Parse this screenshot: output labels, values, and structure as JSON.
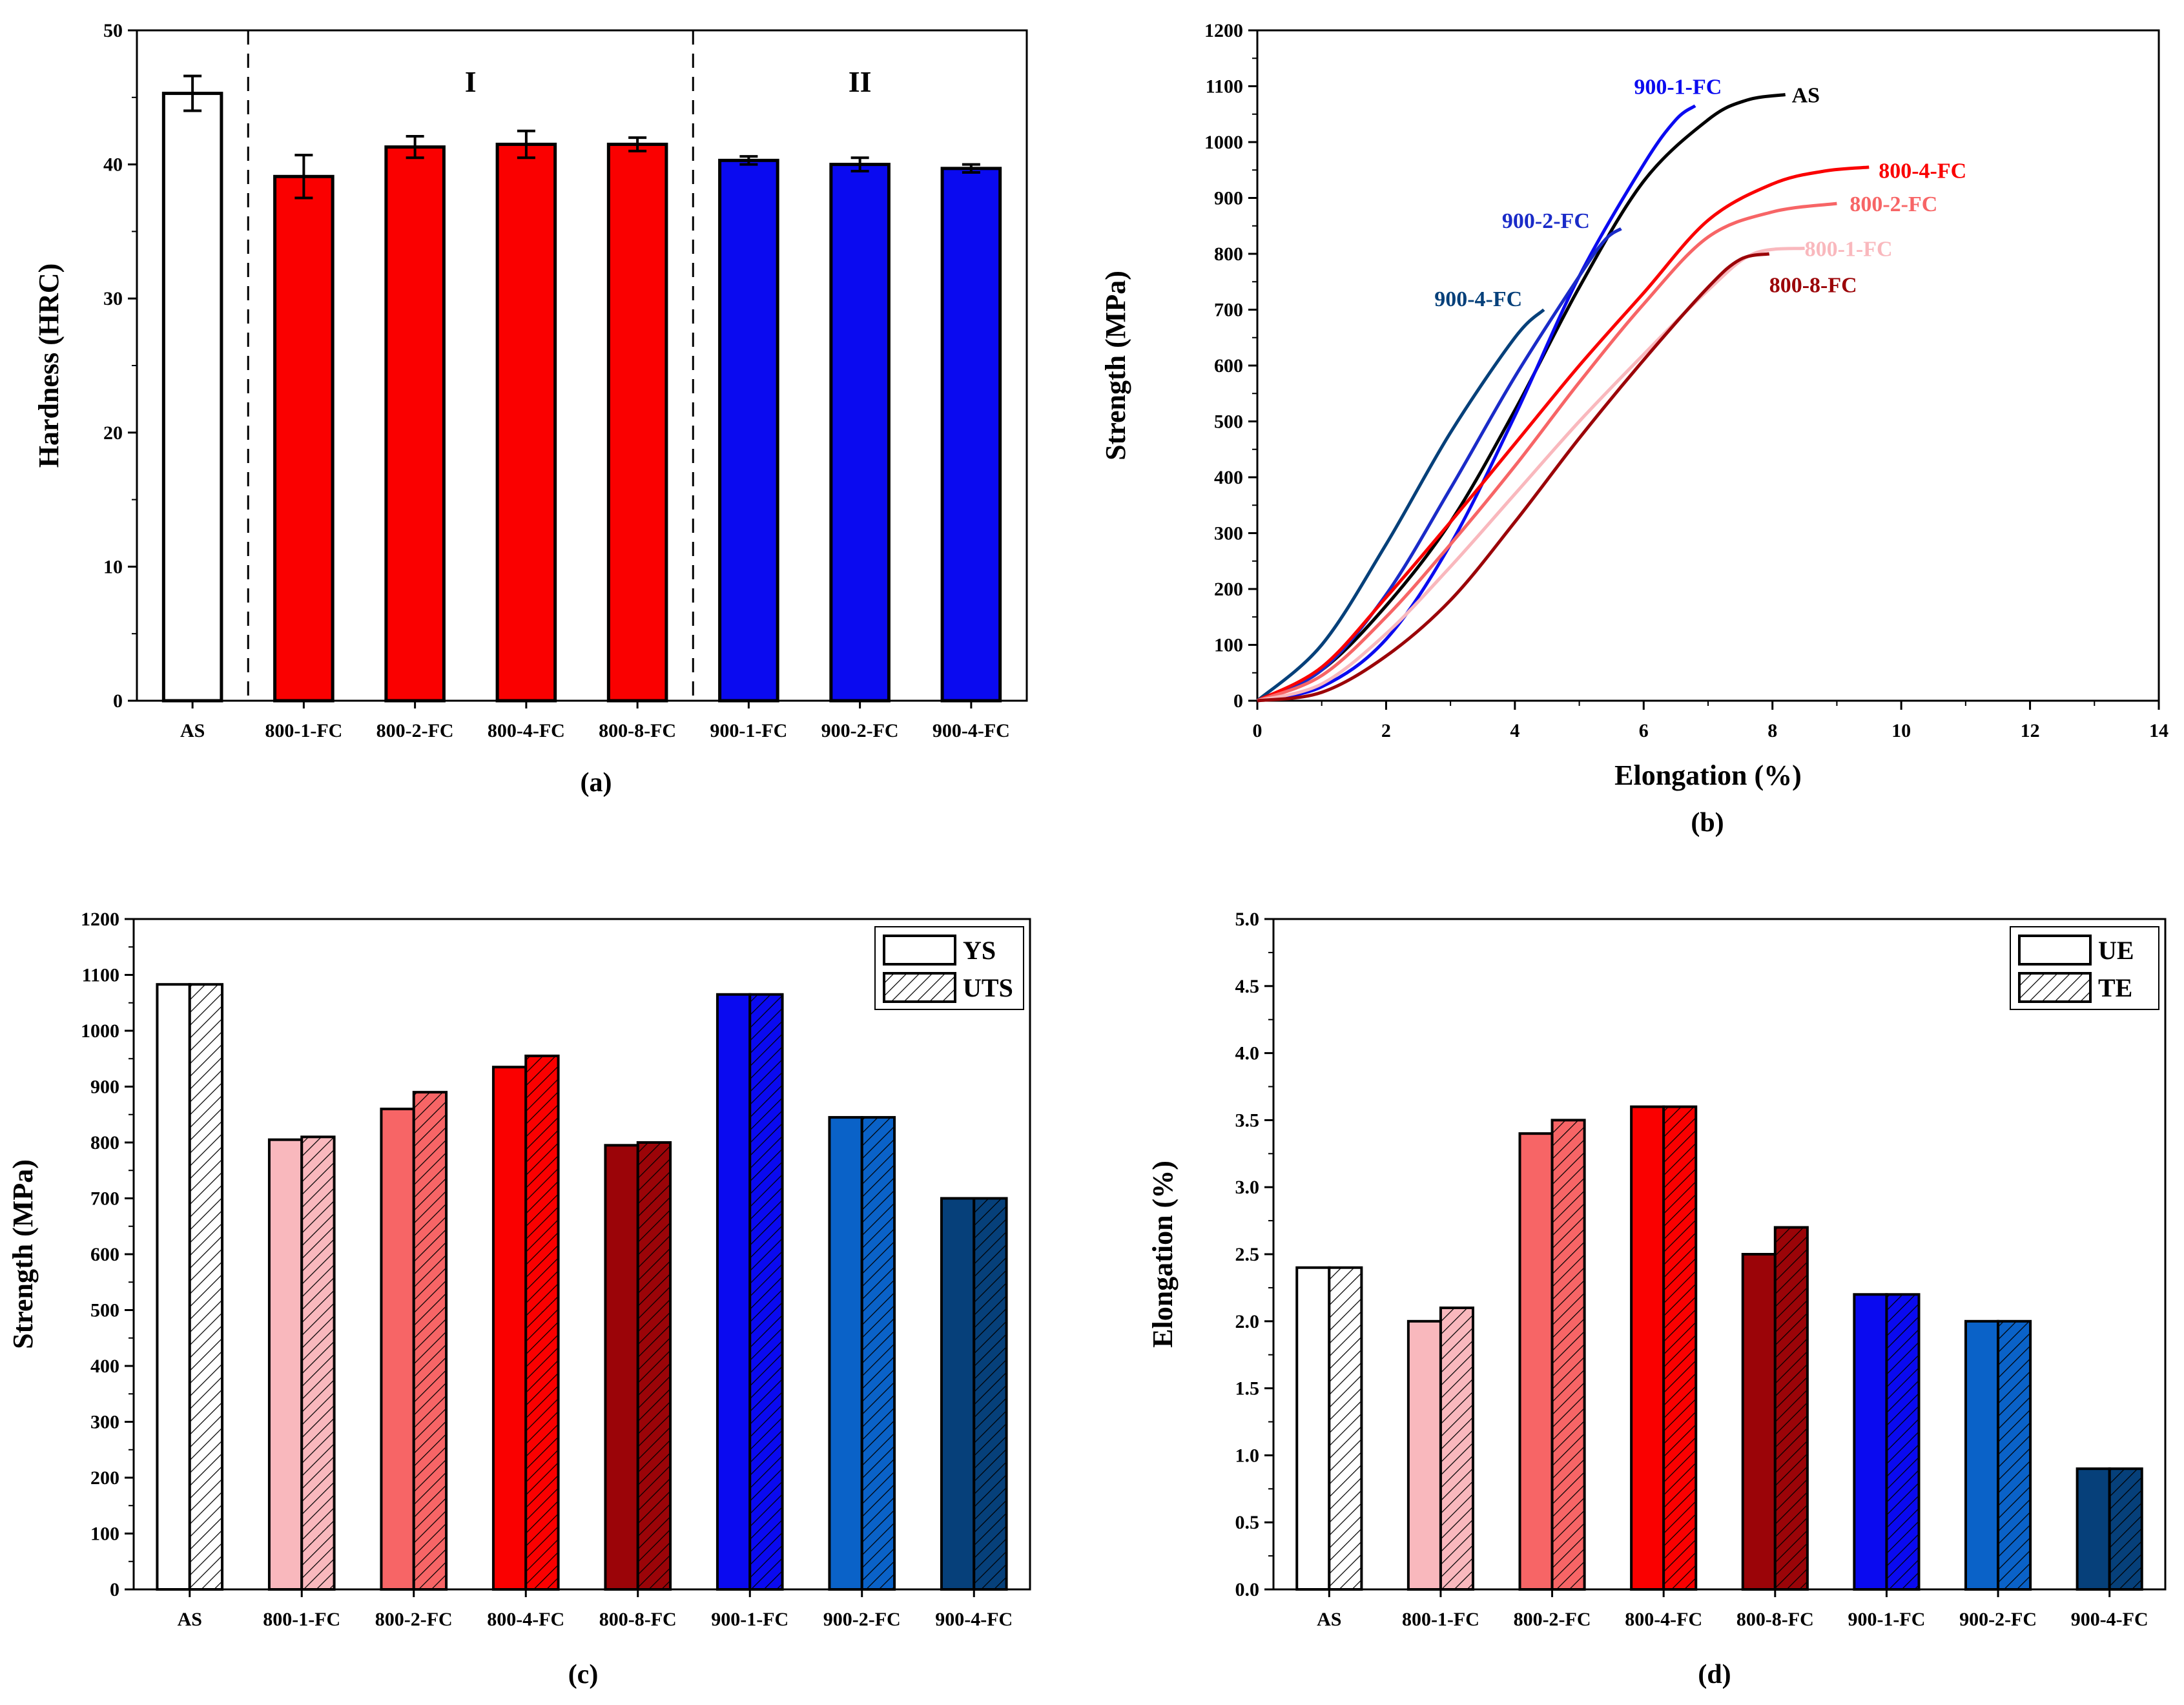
{
  "colors": {
    "white": "#ffffff",
    "pink": "#f9b8bd",
    "salmon": "#f76566",
    "red": "#fa0000",
    "darkred": "#9b0408",
    "blue": "#0a0af0",
    "midblue": "#0a62c8",
    "navy": "#06407a"
  },
  "chart_data": [
    {
      "type": "bar",
      "caption": "(a)",
      "ylabel": "Hardness (HRC)",
      "xlabel": "",
      "ylim": [
        0,
        50
      ],
      "yticks": [
        0,
        10,
        20,
        30,
        40,
        50
      ],
      "categories": [
        "AS",
        "800-1-FC",
        "800-2-FC",
        "800-4-FC",
        "800-8-FC",
        "900-1-FC",
        "900-2-FC",
        "900-4-FC"
      ],
      "values": [
        45.3,
        39.1,
        41.3,
        41.5,
        41.5,
        40.3,
        40.0,
        39.7
      ],
      "errors": [
        1.3,
        1.6,
        0.8,
        1.0,
        0.5,
        0.3,
        0.5,
        0.3
      ],
      "bar_colors": [
        "white",
        "red",
        "red",
        "red",
        "red",
        "blue",
        "blue",
        "blue"
      ],
      "regions": [
        {
          "label": "I",
          "from_category": 1,
          "to_category": 4
        },
        {
          "label": "II",
          "from_category": 5,
          "to_category": 7
        }
      ]
    },
    {
      "type": "line",
      "caption": "(b)",
      "ylabel": "Strength (MPa)",
      "xlabel": "Elongation (%)",
      "xlim": [
        0,
        14
      ],
      "ylim": [
        0,
        1200
      ],
      "xticks": [
        0,
        2,
        4,
        6,
        8,
        10,
        12,
        14
      ],
      "yticks": [
        0,
        100,
        200,
        300,
        400,
        500,
        600,
        700,
        800,
        900,
        1000,
        1100,
        1200
      ],
      "series": [
        {
          "name": "AS",
          "color": "#000000",
          "label_at": [
            8.3,
            1085
          ],
          "points": [
            [
              0,
              0
            ],
            [
              1,
              55
            ],
            [
              2,
              170
            ],
            [
              3,
              320
            ],
            [
              4,
              520
            ],
            [
              5,
              740
            ],
            [
              6,
              930
            ],
            [
              7,
              1040
            ],
            [
              7.6,
              1075
            ],
            [
              8.2,
              1085
            ]
          ]
        },
        {
          "name": "900-1-FC",
          "color": "blue",
          "label_at": [
            5.85,
            1100
          ],
          "points": [
            [
              0,
              0
            ],
            [
              1,
              25
            ],
            [
              2,
              110
            ],
            [
              3,
              280
            ],
            [
              4,
              510
            ],
            [
              5,
              760
            ],
            [
              6,
              960
            ],
            [
              6.5,
              1040
            ],
            [
              6.8,
              1065
            ]
          ]
        },
        {
          "name": "900-2-FC",
          "color": "#1a2bc8",
          "label_at": [
            3.8,
            860
          ],
          "points": [
            [
              0,
              0
            ],
            [
              1,
              55
            ],
            [
              2,
              190
            ],
            [
              3,
              380
            ],
            [
              4,
              580
            ],
            [
              5,
              760
            ],
            [
              5.4,
              825
            ],
            [
              5.65,
              845
            ]
          ]
        },
        {
          "name": "900-4-FC",
          "color": "navy",
          "label_at": [
            2.75,
            720
          ],
          "points": [
            [
              0,
              0
            ],
            [
              1,
              100
            ],
            [
              2,
              280
            ],
            [
              3,
              480
            ],
            [
              4,
              650
            ],
            [
              4.45,
              700
            ]
          ]
        },
        {
          "name": "800-4-FC",
          "color": "red",
          "label_at": [
            9.65,
            950
          ],
          "points": [
            [
              0,
              0
            ],
            [
              1,
              60
            ],
            [
              2,
              185
            ],
            [
              3,
              320
            ],
            [
              4,
              460
            ],
            [
              5,
              600
            ],
            [
              6,
              730
            ],
            [
              7,
              860
            ],
            [
              8,
              925
            ],
            [
              8.8,
              948
            ],
            [
              9.5,
              955
            ]
          ]
        },
        {
          "name": "800-2-FC",
          "color": "salmon",
          "label_at": [
            9.2,
            890
          ],
          "points": [
            [
              0,
              0
            ],
            [
              1,
              45
            ],
            [
              2,
              150
            ],
            [
              3,
              280
            ],
            [
              4,
              420
            ],
            [
              5,
              570
            ],
            [
              6,
              710
            ],
            [
              7,
              830
            ],
            [
              8,
              875
            ],
            [
              9,
              890
            ]
          ]
        },
        {
          "name": "800-1-FC",
          "color": "pink",
          "label_at": [
            8.5,
            810
          ],
          "points": [
            [
              0,
              0
            ],
            [
              1,
              30
            ],
            [
              2,
              120
            ],
            [
              3,
              240
            ],
            [
              4,
              370
            ],
            [
              5,
              500
            ],
            [
              6,
              620
            ],
            [
              7,
              735
            ],
            [
              7.7,
              800
            ],
            [
              8.5,
              810
            ]
          ]
        },
        {
          "name": "800-8-FC",
          "color": "darkred",
          "label_at": [
            7.95,
            745
          ],
          "points": [
            [
              0,
              0
            ],
            [
              1,
              15
            ],
            [
              2,
              80
            ],
            [
              3,
              180
            ],
            [
              4,
              320
            ],
            [
              5,
              470
            ],
            [
              6,
              610
            ],
            [
              7,
              740
            ],
            [
              7.5,
              790
            ],
            [
              7.95,
              800
            ]
          ]
        }
      ]
    },
    {
      "type": "bar",
      "caption": "(c)",
      "ylabel": "Strength (MPa)",
      "xlabel": "",
      "ylim": [
        0,
        1200
      ],
      "yticks": [
        0,
        100,
        200,
        300,
        400,
        500,
        600,
        700,
        800,
        900,
        1000,
        1100,
        1200
      ],
      "legend": {
        "placement": "top-right",
        "entries": [
          "YS",
          "UTS"
        ]
      },
      "categories": [
        "AS",
        "800-1-FC",
        "800-2-FC",
        "800-4-FC",
        "800-8-FC",
        "900-1-FC",
        "900-2-FC",
        "900-4-FC"
      ],
      "bar_colors": [
        "white",
        "pink",
        "salmon",
        "red",
        "darkred",
        "blue",
        "midblue",
        "navy"
      ],
      "series": [
        {
          "name": "YS",
          "hatched": false,
          "values": [
            1083,
            805,
            860,
            935,
            795,
            1065,
            845,
            700
          ]
        },
        {
          "name": "UTS",
          "hatched": true,
          "values": [
            1083,
            810,
            890,
            955,
            800,
            1065,
            845,
            700
          ]
        }
      ]
    },
    {
      "type": "bar",
      "caption": "(d)",
      "ylabel": "Elongation (%)",
      "xlabel": "",
      "ylim": [
        0,
        5
      ],
      "yticks": [
        "0.0",
        "0.5",
        "1.0",
        "1.5",
        "2.0",
        "2.5",
        "3.0",
        "3.5",
        "4.0",
        "4.5",
        "5.0"
      ],
      "legend": {
        "placement": "top-right",
        "entries": [
          "UE",
          "TE"
        ]
      },
      "categories": [
        "AS",
        "800-1-FC",
        "800-2-FC",
        "800-4-FC",
        "800-8-FC",
        "900-1-FC",
        "900-2-FC",
        "900-4-FC"
      ],
      "bar_colors": [
        "white",
        "pink",
        "salmon",
        "red",
        "darkred",
        "blue",
        "midblue",
        "navy"
      ],
      "series": [
        {
          "name": "UE",
          "hatched": false,
          "values": [
            2.4,
            2.0,
            3.4,
            3.6,
            2.5,
            2.2,
            2.0,
            0.9
          ]
        },
        {
          "name": "TE",
          "hatched": true,
          "values": [
            2.4,
            2.1,
            3.5,
            3.6,
            2.7,
            2.2,
            2.0,
            0.9
          ]
        }
      ]
    }
  ]
}
